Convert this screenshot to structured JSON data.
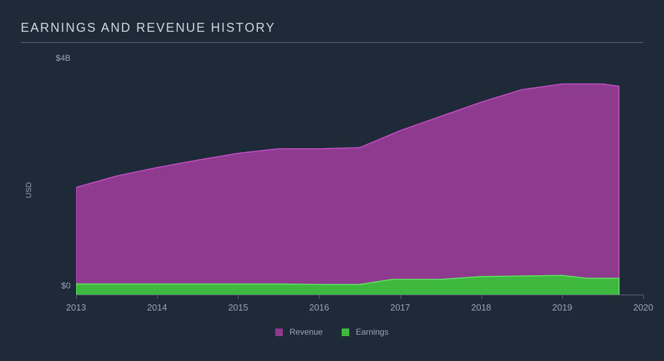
{
  "title": "EARNINGS AND REVENUE HISTORY",
  "title_fontsize": 18,
  "title_color": "#d0d8e0",
  "background_color": "#1e2a38",
  "chart": {
    "type": "area",
    "y_axis_label": "USD",
    "y_ticks": [
      {
        "value": 0,
        "label": "$0"
      },
      {
        "value": 4,
        "label": "$4B"
      }
    ],
    "ylim": [
      0,
      4.2
    ],
    "x_years": [
      2013,
      2014,
      2015,
      2016,
      2017,
      2018,
      2019,
      2020
    ],
    "xlim": [
      2013,
      2020
    ],
    "data_x_end_year": 2019.7,
    "series": [
      {
        "name": "Revenue",
        "color": "#8e3a8e",
        "stroke": "#c54fc5",
        "points": [
          {
            "x": 2013.0,
            "y": 1.9
          },
          {
            "x": 2013.5,
            "y": 2.1
          },
          {
            "x": 2014.0,
            "y": 2.25
          },
          {
            "x": 2014.5,
            "y": 2.38
          },
          {
            "x": 2015.0,
            "y": 2.5
          },
          {
            "x": 2015.5,
            "y": 2.58
          },
          {
            "x": 2016.0,
            "y": 2.58
          },
          {
            "x": 2016.5,
            "y": 2.6
          },
          {
            "x": 2017.0,
            "y": 2.9
          },
          {
            "x": 2017.5,
            "y": 3.15
          },
          {
            "x": 2018.0,
            "y": 3.4
          },
          {
            "x": 2018.5,
            "y": 3.62
          },
          {
            "x": 2019.0,
            "y": 3.72
          },
          {
            "x": 2019.5,
            "y": 3.72
          },
          {
            "x": 2019.7,
            "y": 3.68
          }
        ]
      },
      {
        "name": "Earnings",
        "color": "#3fb83f",
        "stroke": "#5fe85f",
        "points": [
          {
            "x": 2013.0,
            "y": 0.2
          },
          {
            "x": 2013.5,
            "y": 0.2
          },
          {
            "x": 2014.0,
            "y": 0.2
          },
          {
            "x": 2014.5,
            "y": 0.2
          },
          {
            "x": 2015.0,
            "y": 0.2
          },
          {
            "x": 2015.5,
            "y": 0.2
          },
          {
            "x": 2016.0,
            "y": 0.19
          },
          {
            "x": 2016.5,
            "y": 0.19
          },
          {
            "x": 2016.9,
            "y": 0.28
          },
          {
            "x": 2017.5,
            "y": 0.28
          },
          {
            "x": 2018.0,
            "y": 0.33
          },
          {
            "x": 2018.5,
            "y": 0.34
          },
          {
            "x": 2019.0,
            "y": 0.35
          },
          {
            "x": 2019.3,
            "y": 0.3
          },
          {
            "x": 2019.7,
            "y": 0.3
          }
        ]
      }
    ],
    "axis_color": "#5a6775",
    "tick_label_color": "#9aa6b3",
    "tick_fontsize": 12
  },
  "legend": {
    "items": [
      {
        "label": "Revenue",
        "color": "#8e3a8e"
      },
      {
        "label": "Earnings",
        "color": "#3fb83f"
      }
    ],
    "fontsize": 12,
    "label_color": "#9aa6b3"
  }
}
